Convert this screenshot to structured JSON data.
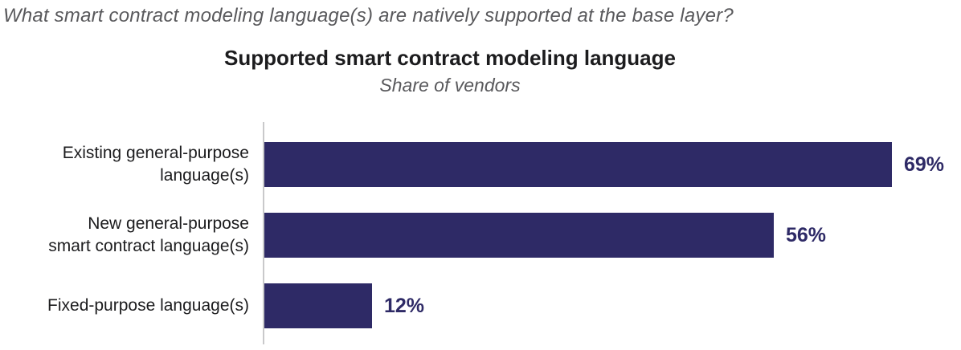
{
  "page": {
    "question": "What smart contract modeling language(s) are natively supported at the base layer?"
  },
  "chart_data": {
    "type": "bar",
    "orientation": "horizontal",
    "title": "Supported smart contract modeling language",
    "subtitle": "Share of vendors",
    "categories": [
      "Existing general-purpose\nlanguage(s)",
      "New general-purpose\nsmart contract language(s)",
      "Fixed-purpose language(s)"
    ],
    "values": [
      69,
      56,
      12
    ],
    "unit": "%",
    "value_labels": [
      "69%",
      "56%",
      "12%"
    ],
    "xlim": [
      0,
      100
    ],
    "grid": false,
    "legend": false,
    "bar_color": "#2e2a66",
    "value_label_color": "#2e2a66",
    "category_label_color": "#1c1c1e",
    "title_color": "#1c1c1e",
    "subtitle_color": "#59595c",
    "question_color": "#59595c",
    "axis_line_color": "#c9c9cb"
  }
}
